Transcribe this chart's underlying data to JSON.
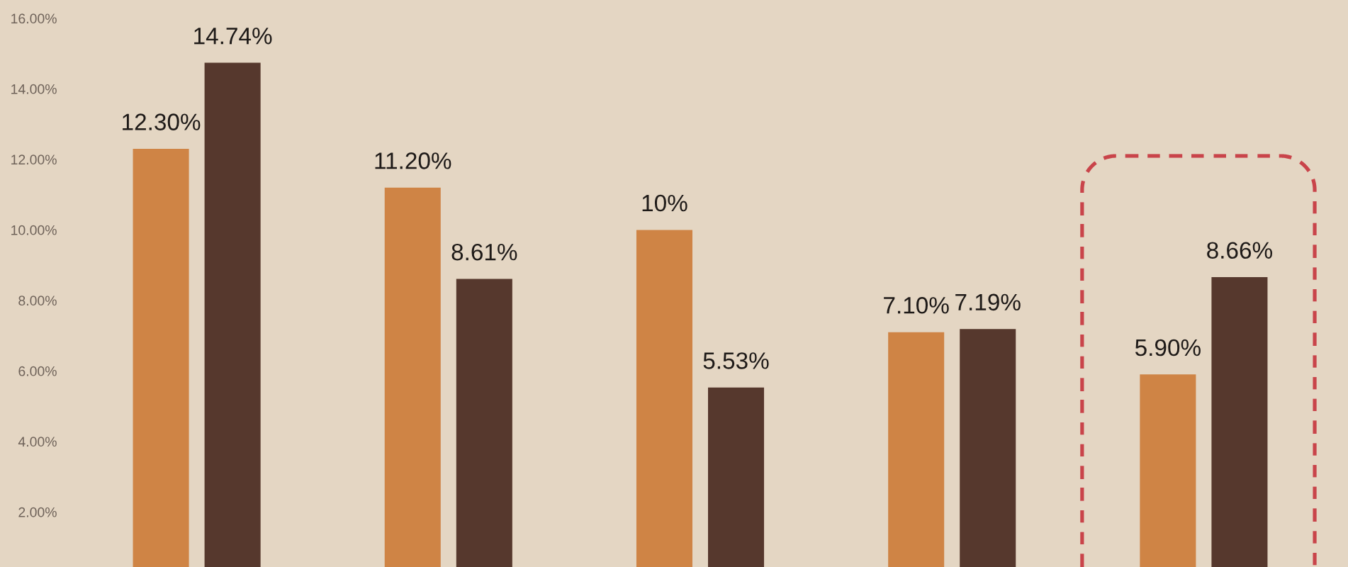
{
  "chart_data": {
    "type": "bar",
    "categories": [
      null,
      null,
      null,
      null,
      null
    ],
    "series": [
      {
        "color": "#cf8445",
        "values": [
          12.3,
          11.2,
          10,
          7.1,
          5.9
        ],
        "value_labels": [
          "12.30%",
          "11.20%",
          "10%",
          "7.10%",
          "5.90%"
        ]
      },
      {
        "color": "#56382d",
        "values": [
          14.74,
          8.61,
          5.53,
          7.19,
          8.66
        ],
        "value_labels": [
          "14.74%",
          "8.61%",
          "5.53%",
          "7.19%",
          "8.66%"
        ]
      }
    ],
    "ylim": [
      0.44,
      16.52
    ],
    "yticks": [
      {
        "value": 2,
        "label": "2.00%"
      },
      {
        "value": 4,
        "label": "4.00%"
      },
      {
        "value": 6,
        "label": "6.00%"
      },
      {
        "value": 8,
        "label": "8.00%"
      },
      {
        "value": 10,
        "label": "10.00%"
      },
      {
        "value": 12,
        "label": "12.00%"
      },
      {
        "value": 14,
        "label": "14.00%"
      },
      {
        "value": 16,
        "label": "16.00%"
      }
    ],
    "tick_labels": "y"
  }
}
